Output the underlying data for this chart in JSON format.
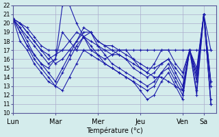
{
  "title": "",
  "xlabel": "Température (°c)",
  "ylabel": "",
  "background_color": "#d4ecec",
  "grid_color": "#aaaacc",
  "line_color": "#1a1aaa",
  "marker": "+",
  "ylim": [
    10,
    22
  ],
  "yticks": [
    10,
    11,
    12,
    13,
    14,
    15,
    16,
    17,
    18,
    19,
    20,
    21,
    22
  ],
  "day_labels": [
    "Lun",
    "Mar",
    "Mer",
    "Jeu",
    "Ven",
    "Sa"
  ],
  "day_positions": [
    0,
    48,
    96,
    144,
    192,
    216
  ],
  "xlim": [
    0,
    230
  ],
  "forecast_series": [
    {
      "x": [
        0,
        8,
        16,
        24,
        32,
        40,
        48,
        56,
        64,
        72,
        80,
        88,
        96,
        104,
        112,
        120,
        128,
        136,
        144,
        152,
        160,
        168,
        176,
        184,
        192,
        200,
        208,
        216,
        224
      ],
      "y": [
        20.5,
        19.0,
        17.5,
        16.0,
        15.0,
        14.0,
        13.0,
        12.5,
        14.0,
        15.5,
        17.0,
        16.5,
        16.0,
        15.5,
        15.0,
        14.5,
        14.0,
        13.5,
        12.5,
        11.5,
        12.0,
        13.5,
        14.5,
        13.0,
        11.5,
        17.0,
        13.5,
        21.0,
        17.0
      ]
    },
    {
      "x": [
        0,
        8,
        16,
        24,
        32,
        40,
        48,
        56,
        64,
        72,
        80,
        88,
        96,
        104,
        112,
        120,
        128,
        136,
        144,
        152,
        160,
        168,
        176,
        184,
        192,
        200,
        208,
        216,
        224
      ],
      "y": [
        20.5,
        19.5,
        18.0,
        16.5,
        15.5,
        15.0,
        16.0,
        22.0,
        22.0,
        20.0,
        18.5,
        17.0,
        16.5,
        16.0,
        16.5,
        17.0,
        17.0,
        16.0,
        15.0,
        14.5,
        15.5,
        17.0,
        17.0,
        15.5,
        14.5,
        17.0,
        14.0,
        21.0,
        13.5
      ]
    },
    {
      "x": [
        0,
        8,
        16,
        24,
        32,
        40,
        48,
        56,
        64,
        72,
        80,
        88,
        96,
        104,
        112,
        120,
        128,
        136,
        144,
        152,
        160,
        168,
        176,
        184,
        192,
        200,
        208,
        216,
        224
      ],
      "y": [
        20.5,
        20.0,
        19.0,
        18.0,
        17.0,
        16.5,
        15.5,
        16.0,
        17.0,
        18.0,
        19.0,
        19.0,
        18.0,
        17.5,
        17.0,
        16.5,
        16.0,
        15.5,
        15.0,
        14.5,
        14.0,
        14.0,
        13.5,
        13.0,
        12.5,
        17.0,
        14.5,
        21.0,
        11.0
      ]
    },
    {
      "x": [
        0,
        8,
        16,
        24,
        32,
        40,
        48,
        56,
        64,
        72,
        80,
        88,
        96,
        104,
        112,
        120,
        128,
        136,
        144,
        152,
        160,
        168,
        176,
        184,
        192,
        200,
        208,
        216,
        224
      ],
      "y": [
        20.5,
        20.0,
        19.0,
        18.0,
        17.0,
        16.0,
        16.5,
        17.0,
        18.0,
        19.0,
        18.5,
        18.0,
        17.5,
        17.0,
        16.5,
        16.5,
        16.0,
        15.0,
        14.5,
        14.0,
        14.5,
        15.5,
        16.0,
        14.5,
        13.0,
        17.0,
        15.0,
        21.0,
        13.0
      ]
    },
    {
      "x": [
        0,
        8,
        16,
        24,
        32,
        40,
        48,
        56,
        64,
        72,
        80,
        88,
        96,
        104,
        112,
        120,
        128,
        136,
        144,
        152,
        160,
        168,
        176,
        184,
        192,
        200,
        208,
        216,
        224
      ],
      "y": [
        20.5,
        19.0,
        17.5,
        16.5,
        15.5,
        14.5,
        13.5,
        15.0,
        16.5,
        18.0,
        19.5,
        19.0,
        17.5,
        16.5,
        15.5,
        15.0,
        14.5,
        14.0,
        13.5,
        13.0,
        13.5,
        14.5,
        15.0,
        13.5,
        12.0,
        17.0,
        12.5,
        21.0,
        11.5
      ]
    },
    {
      "x": [
        0,
        8,
        16,
        24,
        32,
        40,
        48,
        56,
        64,
        72,
        80,
        88,
        96,
        104,
        112,
        120,
        128,
        136,
        144,
        152,
        160,
        168,
        176,
        184,
        192,
        200,
        208,
        216,
        224
      ],
      "y": [
        20.5,
        18.0,
        17.0,
        15.5,
        14.5,
        13.5,
        13.0,
        14.5,
        16.0,
        17.5,
        18.5,
        17.5,
        16.5,
        15.5,
        15.0,
        14.5,
        14.0,
        13.5,
        13.0,
        12.5,
        13.0,
        14.5,
        15.5,
        14.0,
        12.5,
        17.0,
        12.0,
        21.0,
        11.0
      ]
    },
    {
      "x": [
        0,
        8,
        16,
        24,
        32,
        40,
        48,
        56,
        64,
        72,
        80,
        88,
        96,
        104,
        112,
        120,
        128,
        136,
        144,
        152,
        160,
        168,
        176,
        184,
        192,
        200,
        208,
        216,
        224
      ],
      "y": [
        20.5,
        19.5,
        18.5,
        17.5,
        16.5,
        15.5,
        16.0,
        19.0,
        18.0,
        17.0,
        18.5,
        19.0,
        18.0,
        17.5,
        17.5,
        17.0,
        16.5,
        16.0,
        15.5,
        15.0,
        15.0,
        15.5,
        16.0,
        15.0,
        14.0,
        17.0,
        14.5,
        21.0,
        13.5
      ]
    },
    {
      "x": [
        0,
        8,
        16,
        24,
        32,
        40,
        48,
        56,
        64,
        72,
        80,
        88,
        96,
        104,
        112,
        120,
        128,
        136,
        144,
        152,
        160,
        168,
        176,
        184,
        192,
        200,
        208,
        216,
        224
      ],
      "y": [
        20.5,
        20.0,
        19.5,
        18.5,
        17.5,
        17.0,
        17.0,
        17.0,
        17.0,
        17.0,
        17.0,
        17.0,
        17.0,
        17.0,
        17.0,
        17.0,
        17.0,
        17.0,
        17.0,
        17.0,
        17.0,
        17.0,
        17.0,
        17.0,
        17.0,
        17.0,
        17.0,
        17.0,
        17.0
      ]
    }
  ]
}
